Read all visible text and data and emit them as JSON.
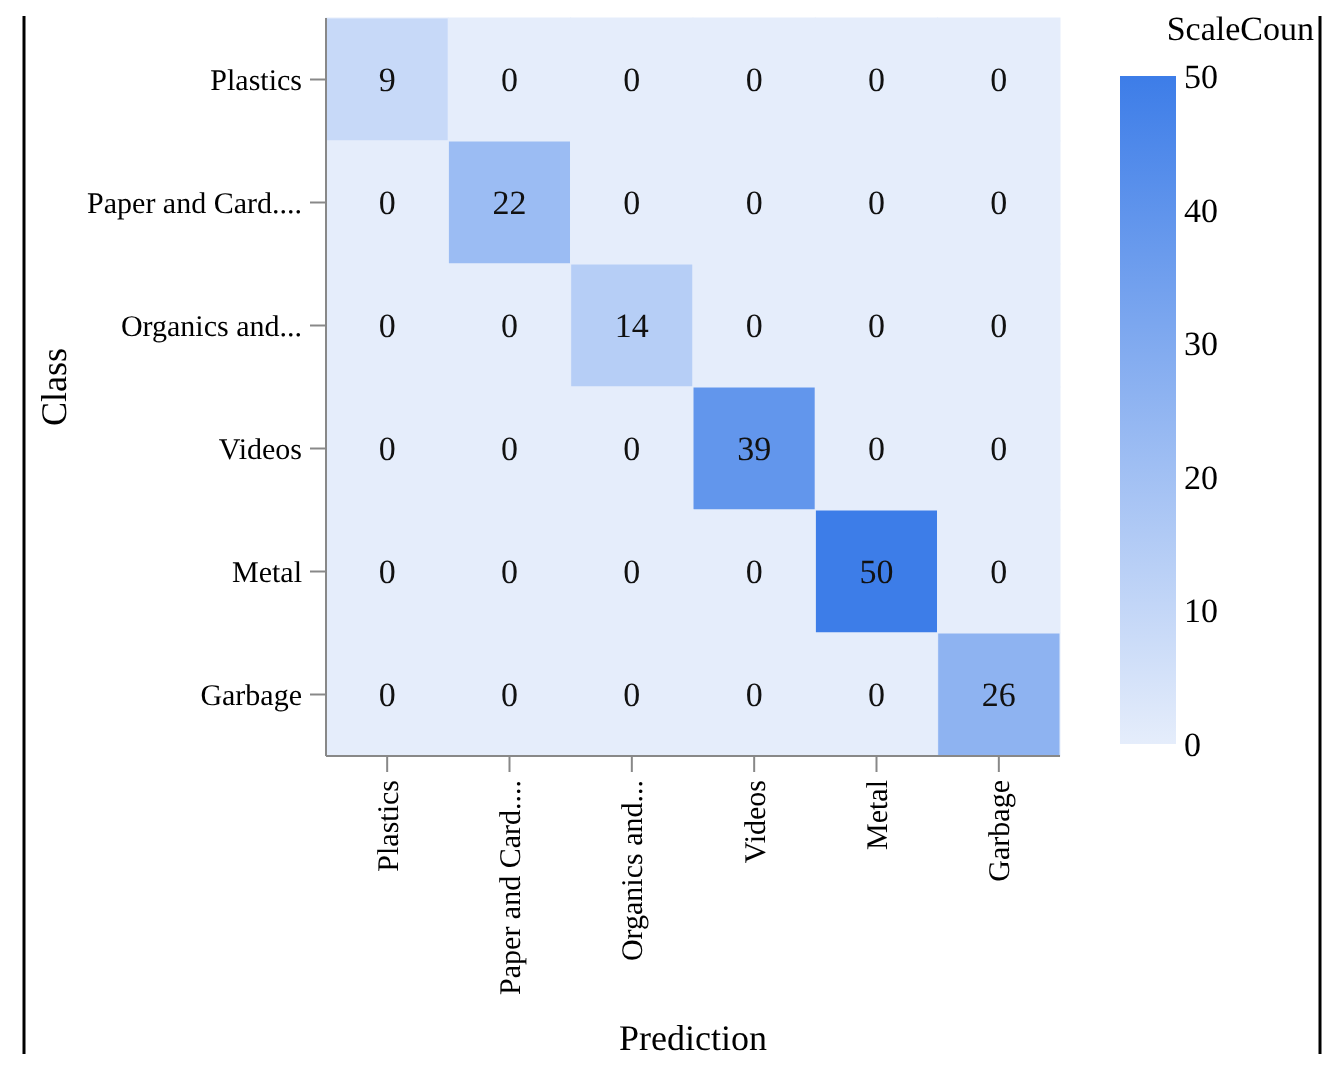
{
  "chart_data": {
    "type": "heatmap",
    "xlabel": "Prediction",
    "ylabel": "Class",
    "clabel": "ScaleCoun",
    "categories": [
      "Plastics",
      "Paper and Card....",
      "Organics and...",
      "Videos",
      "Metal",
      "Garbage"
    ],
    "y_categories": [
      "Plastics",
      "Paper and Card....",
      "Organics and...",
      "Videos",
      "Metal",
      "Garbage"
    ],
    "cells": [
      [
        9,
        0,
        0,
        0,
        0,
        0
      ],
      [
        0,
        22,
        0,
        0,
        0,
        0
      ],
      [
        0,
        0,
        14,
        0,
        0,
        0
      ],
      [
        0,
        0,
        0,
        39,
        0,
        0
      ],
      [
        0,
        0,
        0,
        0,
        50,
        0
      ],
      [
        0,
        0,
        0,
        0,
        0,
        26
      ]
    ],
    "data_labels": true,
    "clim": [
      0,
      50
    ],
    "cticks": [
      0,
      10,
      20,
      30,
      40,
      50
    ],
    "colors": [
      "#e5edfb",
      "#3d7de8"
    ]
  }
}
